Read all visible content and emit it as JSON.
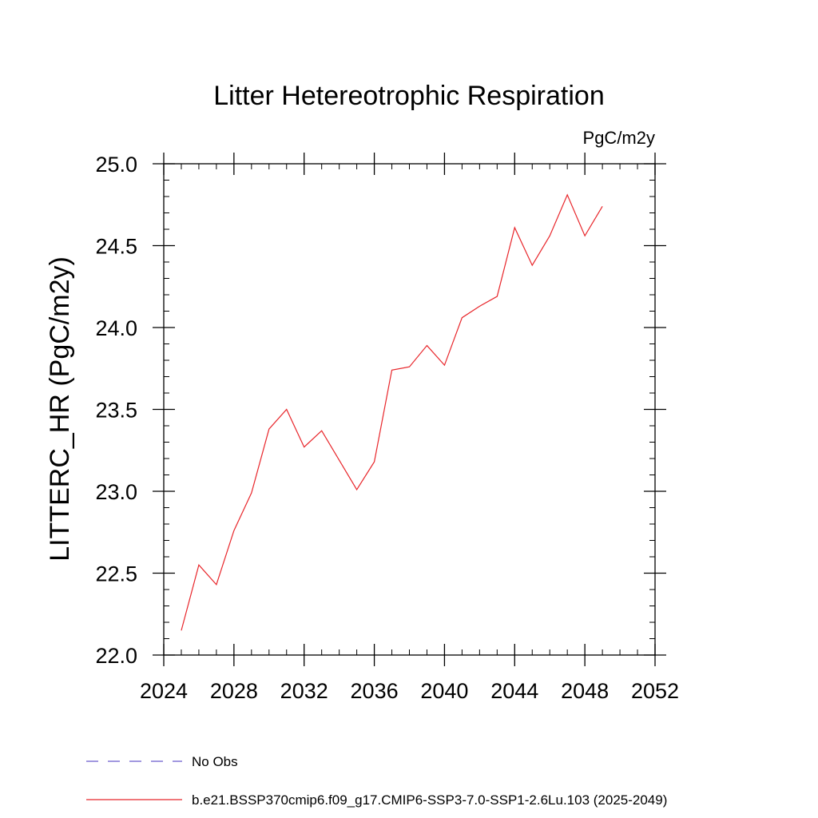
{
  "chart_data": {
    "type": "line",
    "title": "Litter Hetereotrophic Respiration",
    "units_label": "PgC/m2y",
    "ylabel": "LITTERC_HR  (PgC/m2y)",
    "xlabel": "",
    "xlim": [
      2024,
      2052
    ],
    "ylim": [
      22.0,
      25.0
    ],
    "x_ticks": [
      2024,
      2028,
      2032,
      2036,
      2040,
      2044,
      2048,
      2052
    ],
    "x_tick_labels": [
      "2024",
      "2028",
      "2032",
      "2036",
      "2040",
      "2044",
      "2048",
      "2052"
    ],
    "y_ticks": [
      22.0,
      22.5,
      23.0,
      23.5,
      24.0,
      24.5,
      25.0
    ],
    "y_tick_labels": [
      "22.0",
      "22.5",
      "23.0",
      "23.5",
      "24.0",
      "24.5",
      "25.0"
    ],
    "grid": false,
    "legend_position": "bottom",
    "series": [
      {
        "name": "b.e21.BSSP370cmip6.f09_g17.CMIP6-SSP3-7.0-SSP1-2.6Lu.103 (2025-2049)",
        "color": "#e8262b",
        "style": "solid",
        "x": [
          2025,
          2026,
          2027,
          2028,
          2029,
          2030,
          2031,
          2032,
          2033,
          2034,
          2035,
          2036,
          2037,
          2038,
          2039,
          2040,
          2041,
          2042,
          2043,
          2044,
          2045,
          2046,
          2047,
          2048,
          2049
        ],
        "values": [
          22.15,
          22.55,
          22.43,
          22.76,
          22.99,
          23.38,
          23.5,
          23.27,
          23.37,
          23.19,
          23.01,
          23.18,
          23.74,
          23.76,
          23.89,
          23.77,
          24.06,
          24.13,
          24.19,
          24.61,
          24.38,
          24.56,
          24.81,
          24.56,
          24.74
        ]
      }
    ],
    "legend": [
      {
        "label": "No Obs",
        "color": "#6a5acd",
        "style": "dashed"
      },
      {
        "label": "b.e21.BSSP370cmip6.f09_g17.CMIP6-SSP3-7.0-SSP1-2.6Lu.103 (2025-2049)",
        "color": "#e8262b",
        "style": "solid"
      }
    ]
  }
}
